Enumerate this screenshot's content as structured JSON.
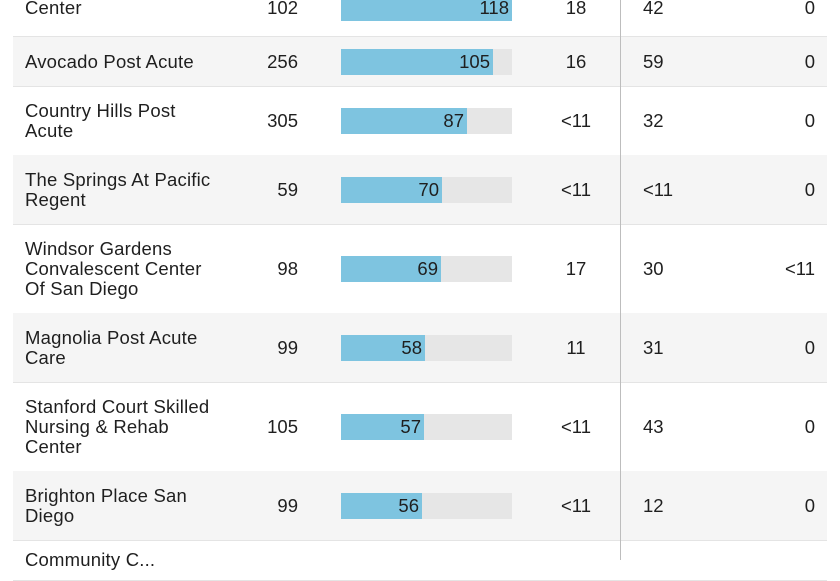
{
  "table": {
    "bar_max": 118,
    "bar_color": "#7ec4e0",
    "rows": [
      {
        "name": "Center",
        "beds": "102",
        "bar": 118,
        "bar_label": "118",
        "c3": "18",
        "c4": "42",
        "c5": "0"
      },
      {
        "name": "Avocado Post Acute",
        "beds": "256",
        "bar": 105,
        "bar_label": "105",
        "c3": "16",
        "c4": "59",
        "c5": "0"
      },
      {
        "name": "Country Hills Post Acute",
        "beds": "305",
        "bar": 87,
        "bar_label": "87",
        "c3": "<11",
        "c4": "32",
        "c5": "0"
      },
      {
        "name": "The Springs At Pacific Regent",
        "beds": "59",
        "bar": 70,
        "bar_label": "70",
        "c3": "<11",
        "c4": "<11",
        "c5": "0"
      },
      {
        "name": "Windsor Gardens Convalescent Center Of San Diego",
        "beds": "98",
        "bar": 69,
        "bar_label": "69",
        "c3": "17",
        "c4": "30",
        "c5": "<11"
      },
      {
        "name": "Magnolia Post Acute Care",
        "beds": "99",
        "bar": 58,
        "bar_label": "58",
        "c3": "11",
        "c4": "31",
        "c5": "0"
      },
      {
        "name": "Stanford Court Skilled Nursing & Rehab Center",
        "beds": "105",
        "bar": 57,
        "bar_label": "57",
        "c3": "<11",
        "c4": "43",
        "c5": "0"
      },
      {
        "name": "Brighton Place San Diego",
        "beds": "99",
        "bar": 56,
        "bar_label": "56",
        "c3": "<11",
        "c4": "12",
        "c5": "0"
      },
      {
        "name": "Community C...",
        "beds": "",
        "bar": null,
        "bar_label": "",
        "c3": "",
        "c4": "",
        "c5": ""
      }
    ]
  }
}
